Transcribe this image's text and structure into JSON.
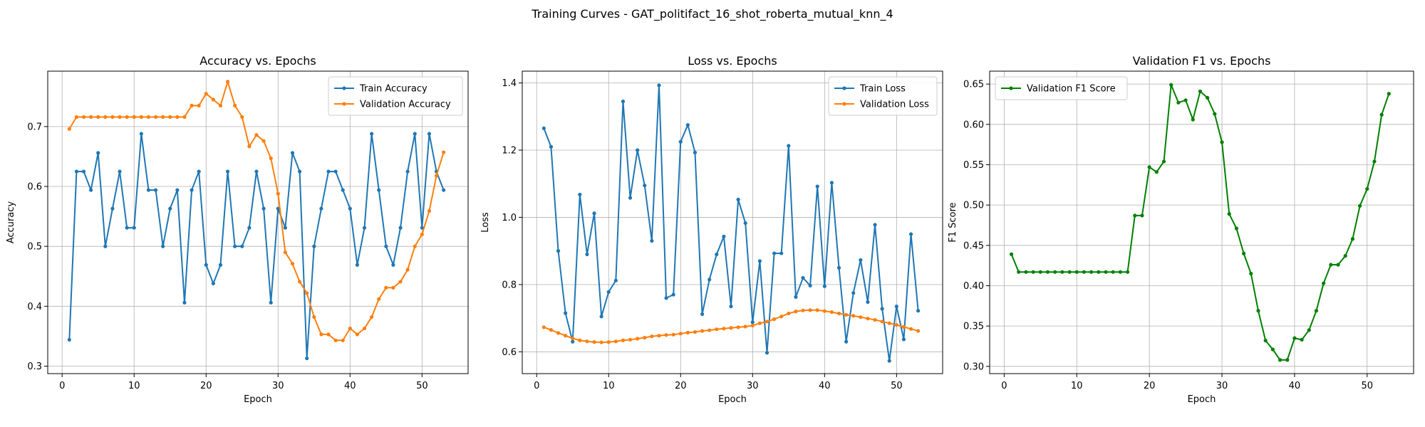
{
  "figure": {
    "suptitle": "Training Curves - GAT_politifact_16_shot_roberta_mutual_knn_4"
  },
  "chart_data": [
    {
      "type": "line",
      "title": "Accuracy vs. Epochs",
      "xlabel": "Epoch",
      "ylabel": "Accuracy",
      "xlim": [
        -2,
        56.4
      ],
      "ylim": [
        0.2875,
        0.7925
      ],
      "xticks": [
        "0",
        "10",
        "20",
        "30",
        "40",
        "50"
      ],
      "xtick_values": [
        0,
        10,
        20,
        30,
        40,
        50
      ],
      "yticks": [
        "0.3",
        "0.4",
        "0.5",
        "0.6",
        "0.7"
      ],
      "ytick_values": [
        0.3,
        0.4,
        0.5,
        0.6,
        0.7
      ],
      "grid": true,
      "legend": "upper right",
      "x": [
        1,
        2,
        3,
        4,
        5,
        6,
        7,
        8,
        9,
        10,
        11,
        12,
        13,
        14,
        15,
        16,
        17,
        18,
        19,
        20,
        21,
        22,
        23,
        24,
        25,
        26,
        27,
        28,
        29,
        30,
        31,
        32,
        33,
        34,
        35,
        36,
        37,
        38,
        39,
        40,
        41,
        42,
        43,
        44,
        45,
        46,
        47,
        48,
        49,
        50,
        51,
        52,
        53
      ],
      "series": [
        {
          "name": "Train Accuracy",
          "color": "#1f77b4",
          "values": [
            0.344,
            0.625,
            0.625,
            0.594,
            0.656,
            0.5,
            0.563,
            0.625,
            0.531,
            0.531,
            0.688,
            0.594,
            0.594,
            0.5,
            0.563,
            0.594,
            0.406,
            0.594,
            0.625,
            0.469,
            0.438,
            0.469,
            0.625,
            0.5,
            0.5,
            0.531,
            0.625,
            0.563,
            0.406,
            0.563,
            0.531,
            0.656,
            0.625,
            0.313,
            0.5,
            0.563,
            0.625,
            0.625,
            0.594,
            0.563,
            0.469,
            0.531,
            0.688,
            0.594,
            0.5,
            0.469,
            0.531,
            0.625,
            0.688,
            0.531,
            0.688,
            0.625,
            0.594
          ]
        },
        {
          "name": "Validation Accuracy",
          "color": "#ff7f0e",
          "values": [
            0.696,
            0.716,
            0.716,
            0.716,
            0.716,
            0.716,
            0.716,
            0.716,
            0.716,
            0.716,
            0.716,
            0.716,
            0.716,
            0.716,
            0.716,
            0.716,
            0.716,
            0.735,
            0.735,
            0.755,
            0.745,
            0.735,
            0.775,
            0.735,
            0.716,
            0.667,
            0.686,
            0.676,
            0.647,
            0.588,
            0.49,
            0.471,
            0.441,
            0.422,
            0.382,
            0.353,
            0.353,
            0.343,
            0.343,
            0.363,
            0.353,
            0.363,
            0.382,
            0.412,
            0.431,
            0.431,
            0.441,
            0.461,
            0.5,
            0.52,
            0.559,
            0.618,
            0.657
          ]
        }
      ]
    },
    {
      "type": "line",
      "title": "Loss vs. Epochs",
      "xlabel": "Epoch",
      "ylabel": "Loss",
      "xlim": [
        -2,
        56.4
      ],
      "ylim": [
        0.535,
        1.435
      ],
      "xticks": [
        "0",
        "10",
        "20",
        "30",
        "40",
        "50"
      ],
      "xtick_values": [
        0,
        10,
        20,
        30,
        40,
        50
      ],
      "yticks": [
        "0.6",
        "0.8",
        "1.0",
        "1.2",
        "1.4"
      ],
      "ytick_values": [
        0.6,
        0.8,
        1.0,
        1.2,
        1.4
      ],
      "grid": true,
      "legend": "upper right",
      "x": [
        1,
        2,
        3,
        4,
        5,
        6,
        7,
        8,
        9,
        10,
        11,
        12,
        13,
        14,
        15,
        16,
        17,
        18,
        19,
        20,
        21,
        22,
        23,
        24,
        25,
        26,
        27,
        28,
        29,
        30,
        31,
        32,
        33,
        34,
        35,
        36,
        37,
        38,
        39,
        40,
        41,
        42,
        43,
        44,
        45,
        46,
        47,
        48,
        49,
        50,
        51,
        52,
        53
      ],
      "series": [
        {
          "name": "Train Loss",
          "color": "#1f77b4",
          "values": [
            1.265,
            1.21,
            0.9,
            0.715,
            0.63,
            1.068,
            0.89,
            1.012,
            0.705,
            0.778,
            0.812,
            1.345,
            1.058,
            1.2,
            1.095,
            0.93,
            1.393,
            0.76,
            0.77,
            1.225,
            1.275,
            1.193,
            0.712,
            0.815,
            0.89,
            0.943,
            0.735,
            1.053,
            0.983,
            0.688,
            0.87,
            0.597,
            0.893,
            0.893,
            1.213,
            0.763,
            0.82,
            0.797,
            1.092,
            0.795,
            1.103,
            0.85,
            0.63,
            0.775,
            0.873,
            0.748,
            0.978,
            0.728,
            0.573,
            0.735,
            0.637,
            0.95,
            0.722
          ]
        },
        {
          "name": "Validation Loss",
          "color": "#ff7f0e",
          "values": [
            0.673,
            0.665,
            0.656,
            0.648,
            0.64,
            0.634,
            0.631,
            0.629,
            0.628,
            0.629,
            0.631,
            0.634,
            0.636,
            0.639,
            0.642,
            0.646,
            0.648,
            0.65,
            0.651,
            0.654,
            0.657,
            0.659,
            0.662,
            0.664,
            0.667,
            0.669,
            0.671,
            0.673,
            0.675,
            0.678,
            0.685,
            0.69,
            0.697,
            0.705,
            0.714,
            0.72,
            0.723,
            0.724,
            0.724,
            0.721,
            0.718,
            0.714,
            0.71,
            0.707,
            0.703,
            0.699,
            0.695,
            0.69,
            0.685,
            0.68,
            0.674,
            0.668,
            0.662
          ]
        }
      ]
    },
    {
      "type": "line",
      "title": "Validation F1 vs. Epochs",
      "xlabel": "Epoch",
      "ylabel": "F1 Score",
      "xlim": [
        -2,
        56.4
      ],
      "ylim": [
        0.291,
        0.666
      ],
      "xticks": [
        "0",
        "10",
        "20",
        "30",
        "40",
        "50"
      ],
      "xtick_values": [
        0,
        10,
        20,
        30,
        40,
        50
      ],
      "yticks": [
        "0.30",
        "0.35",
        "0.40",
        "0.45",
        "0.50",
        "0.55",
        "0.60",
        "0.65"
      ],
      "ytick_values": [
        0.3,
        0.35,
        0.4,
        0.45,
        0.5,
        0.55,
        0.6,
        0.65
      ],
      "grid": true,
      "legend": "upper left",
      "x": [
        1,
        2,
        3,
        4,
        5,
        6,
        7,
        8,
        9,
        10,
        11,
        12,
        13,
        14,
        15,
        16,
        17,
        18,
        19,
        20,
        21,
        22,
        23,
        24,
        25,
        26,
        27,
        28,
        29,
        30,
        31,
        32,
        33,
        34,
        35,
        36,
        37,
        38,
        39,
        40,
        41,
        42,
        43,
        44,
        45,
        46,
        47,
        48,
        49,
        50,
        51,
        52,
        53
      ],
      "series": [
        {
          "name": "Validation F1 Score",
          "color": "#008000",
          "values": [
            0.439,
            0.417,
            0.417,
            0.417,
            0.417,
            0.417,
            0.417,
            0.417,
            0.417,
            0.417,
            0.417,
            0.417,
            0.417,
            0.417,
            0.417,
            0.417,
            0.417,
            0.487,
            0.487,
            0.547,
            0.541,
            0.554,
            0.649,
            0.627,
            0.63,
            0.606,
            0.641,
            0.633,
            0.613,
            0.578,
            0.489,
            0.471,
            0.44,
            0.415,
            0.369,
            0.332,
            0.321,
            0.308,
            0.308,
            0.335,
            0.333,
            0.345,
            0.369,
            0.403,
            0.426,
            0.426,
            0.437,
            0.458,
            0.499,
            0.52,
            0.554,
            0.612,
            0.638
          ]
        }
      ]
    }
  ]
}
